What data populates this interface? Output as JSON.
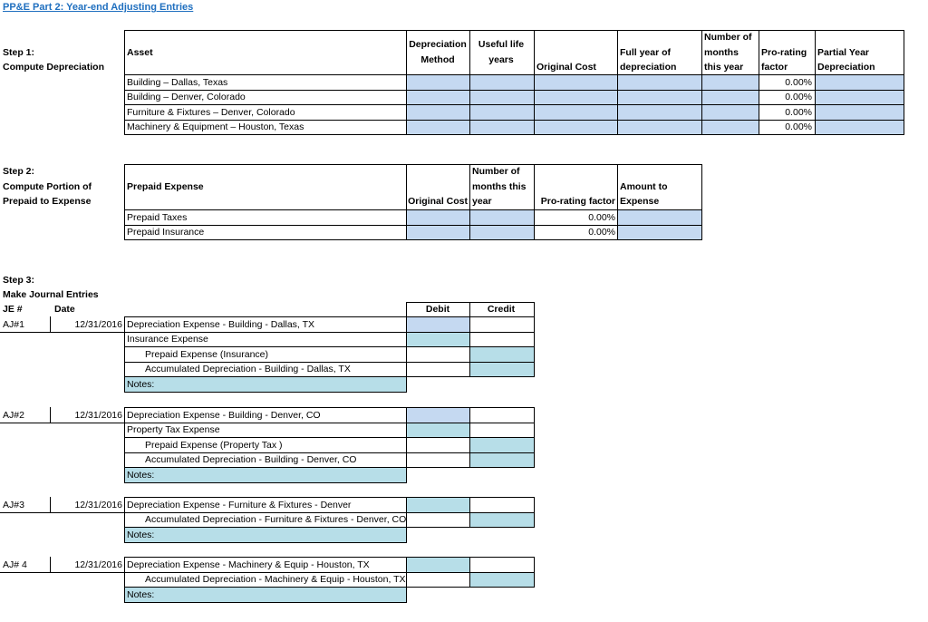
{
  "title": "PP&E Part 2: Year-end Adjusting Entries",
  "step1": {
    "label": [
      "Step 1:",
      "Compute Depreciation"
    ],
    "headers": [
      [
        "Asset"
      ],
      [
        "Depreciation",
        "Method"
      ],
      [
        "Useful life",
        "years"
      ],
      [
        "Original Cost"
      ],
      [
        "Full year of",
        "depreciation"
      ],
      [
        "Number of",
        "months",
        "this year"
      ],
      [
        "Pro-rating",
        "factor"
      ],
      [
        "Partial Year",
        "Depreciation"
      ]
    ],
    "rows": [
      {
        "asset": "Building – Dallas, Texas",
        "prorating_factor": "0.00%"
      },
      {
        "asset": "Building – Denver, Colorado",
        "prorating_factor": "0.00%"
      },
      {
        "asset": "Furniture & Fixtures – Denver, Colorado",
        "prorating_factor": "0.00%"
      },
      {
        "asset": "Machinery & Equipment – Houston, Texas",
        "prorating_factor": "0.00%"
      }
    ]
  },
  "step2": {
    "label": [
      "Step 2:",
      "Compute Portion of",
      "Prepaid to Expense"
    ],
    "headers": [
      [
        "Prepaid Expense"
      ],
      [
        "Original Cost"
      ],
      [
        "Number of",
        "months this",
        "year"
      ],
      [
        "Pro-rating factor"
      ],
      [
        "Amount to",
        "Expense"
      ]
    ],
    "rows": [
      {
        "expense": "Prepaid Taxes",
        "prorating_factor": "0.00%"
      },
      {
        "expense": "Prepaid Insurance",
        "prorating_factor": "0.00%"
      }
    ]
  },
  "step3": {
    "label": [
      "Step 3:",
      "Make Journal Entries"
    ],
    "columns": {
      "je": "JE #",
      "date": "Date",
      "debit": "Debit",
      "credit": "Credit"
    },
    "entries": [
      {
        "je": "AJ#1",
        "date": "12/31/2016",
        "lines": [
          "Depreciation Expense -  Building - Dallas, TX",
          "Insurance Expense",
          "Prepaid Expense (Insurance)",
          "Accumulated Depreciation - Building - Dallas, TX"
        ],
        "notes": "Notes:"
      },
      {
        "je": "AJ#2",
        "date": "12/31/2016",
        "lines": [
          "Depreciation Expense - Building - Denver, CO",
          "Property Tax Expense",
          "Prepaid Expense (Property Tax )",
          "Accumulated Depreciation - Building - Denver, CO"
        ],
        "notes": "Notes:"
      },
      {
        "je": "AJ#3",
        "date": "12/31/2016",
        "lines": [
          "Depreciation Expense - Furniture & Fixtures - Denver",
          "Accumulated Depreciation - Furniture & Fixtures -  Denver, CO"
        ],
        "notes": "Notes:"
      },
      {
        "je": "AJ# 4",
        "date": "12/31/2016",
        "lines": [
          "Depreciation Expense - Machinery & Equip - Houston, TX",
          "Accumulated Depreciation - Machinery & Equip - Houston, TX"
        ],
        "notes": "Notes:"
      }
    ]
  }
}
